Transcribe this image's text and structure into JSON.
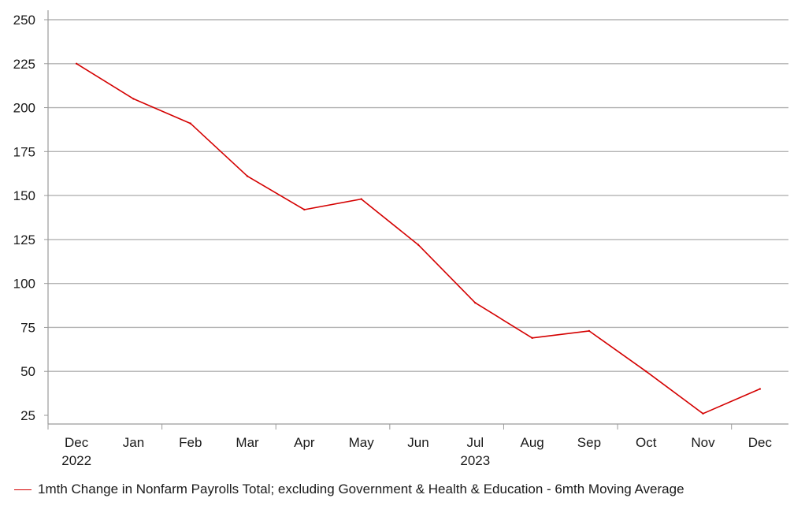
{
  "chart_data": {
    "type": "line",
    "title": "",
    "xlabel": "",
    "ylabel": "",
    "categories": [
      "Dec",
      "Jan",
      "Feb",
      "Mar",
      "Apr",
      "May",
      "Jun",
      "Jul",
      "Aug",
      "Sep",
      "Oct",
      "Nov",
      "Dec"
    ],
    "year_labels": [
      {
        "category_index": 0,
        "text": "2022"
      },
      {
        "category_index": 7,
        "text": "2023"
      }
    ],
    "ylim": [
      25,
      250
    ],
    "yticks": [
      25,
      50,
      75,
      100,
      125,
      150,
      175,
      200,
      225,
      250
    ],
    "grid": true,
    "legend_position": "bottom-left",
    "series": [
      {
        "name": "1mth Change in Nonfarm Payrolls Total; excluding Government & Health & Education - 6mth Moving Average",
        "color": "#d40000",
        "values": [
          225,
          205,
          191,
          161,
          142,
          148,
          122,
          89,
          69,
          73,
          50,
          26,
          40
        ]
      }
    ]
  }
}
